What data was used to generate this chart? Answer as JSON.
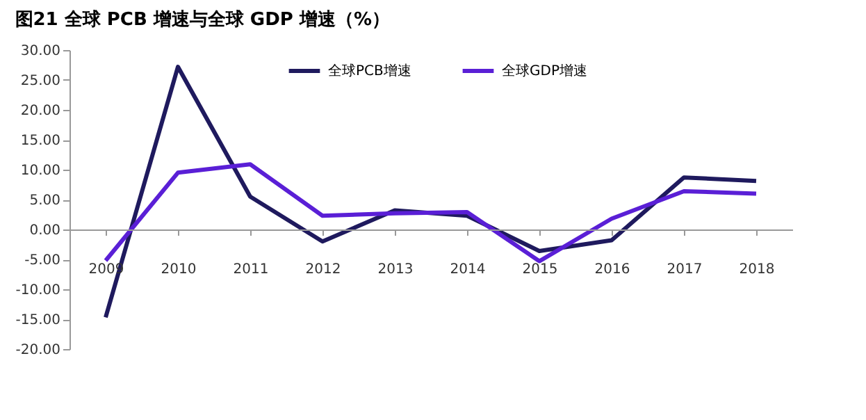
{
  "chart_data": {
    "type": "line",
    "title": "图21  全球 PCB 增速与全球 GDP 增速（%）",
    "categories": [
      "2009",
      "2010",
      "2011",
      "2012",
      "2013",
      "2014",
      "2015",
      "2016",
      "2017",
      "2018"
    ],
    "series": [
      {
        "name": "全球PCB增速",
        "color": "#1f1a5e",
        "values": [
          -14.7,
          27.2,
          5.5,
          -2.0,
          3.2,
          2.3,
          -3.6,
          -1.8,
          8.7,
          8.1
        ]
      },
      {
        "name": "全球GDP增速",
        "color": "#5a1fd6",
        "values": [
          -5.2,
          9.5,
          10.9,
          2.3,
          2.7,
          2.9,
          -5.3,
          1.8,
          6.4,
          6.0
        ]
      }
    ],
    "ylim": [
      -20,
      30
    ],
    "yticks": [
      {
        "value": -20,
        "label": "-20.00"
      },
      {
        "value": -15,
        "label": "-15.00"
      },
      {
        "value": -10,
        "label": "-10.00"
      },
      {
        "value": -5,
        "label": "-5.00"
      },
      {
        "value": 0,
        "label": "0.00"
      },
      {
        "value": 5,
        "label": "5.00"
      },
      {
        "value": 10,
        "label": "10.00"
      },
      {
        "value": 15,
        "label": "15.00"
      },
      {
        "value": 20,
        "label": "20.00"
      },
      {
        "value": 25,
        "label": "25.00"
      },
      {
        "value": 30,
        "label": "30.00"
      }
    ],
    "grid": false,
    "legend": "top",
    "marker": "none",
    "line_style": "solid"
  }
}
